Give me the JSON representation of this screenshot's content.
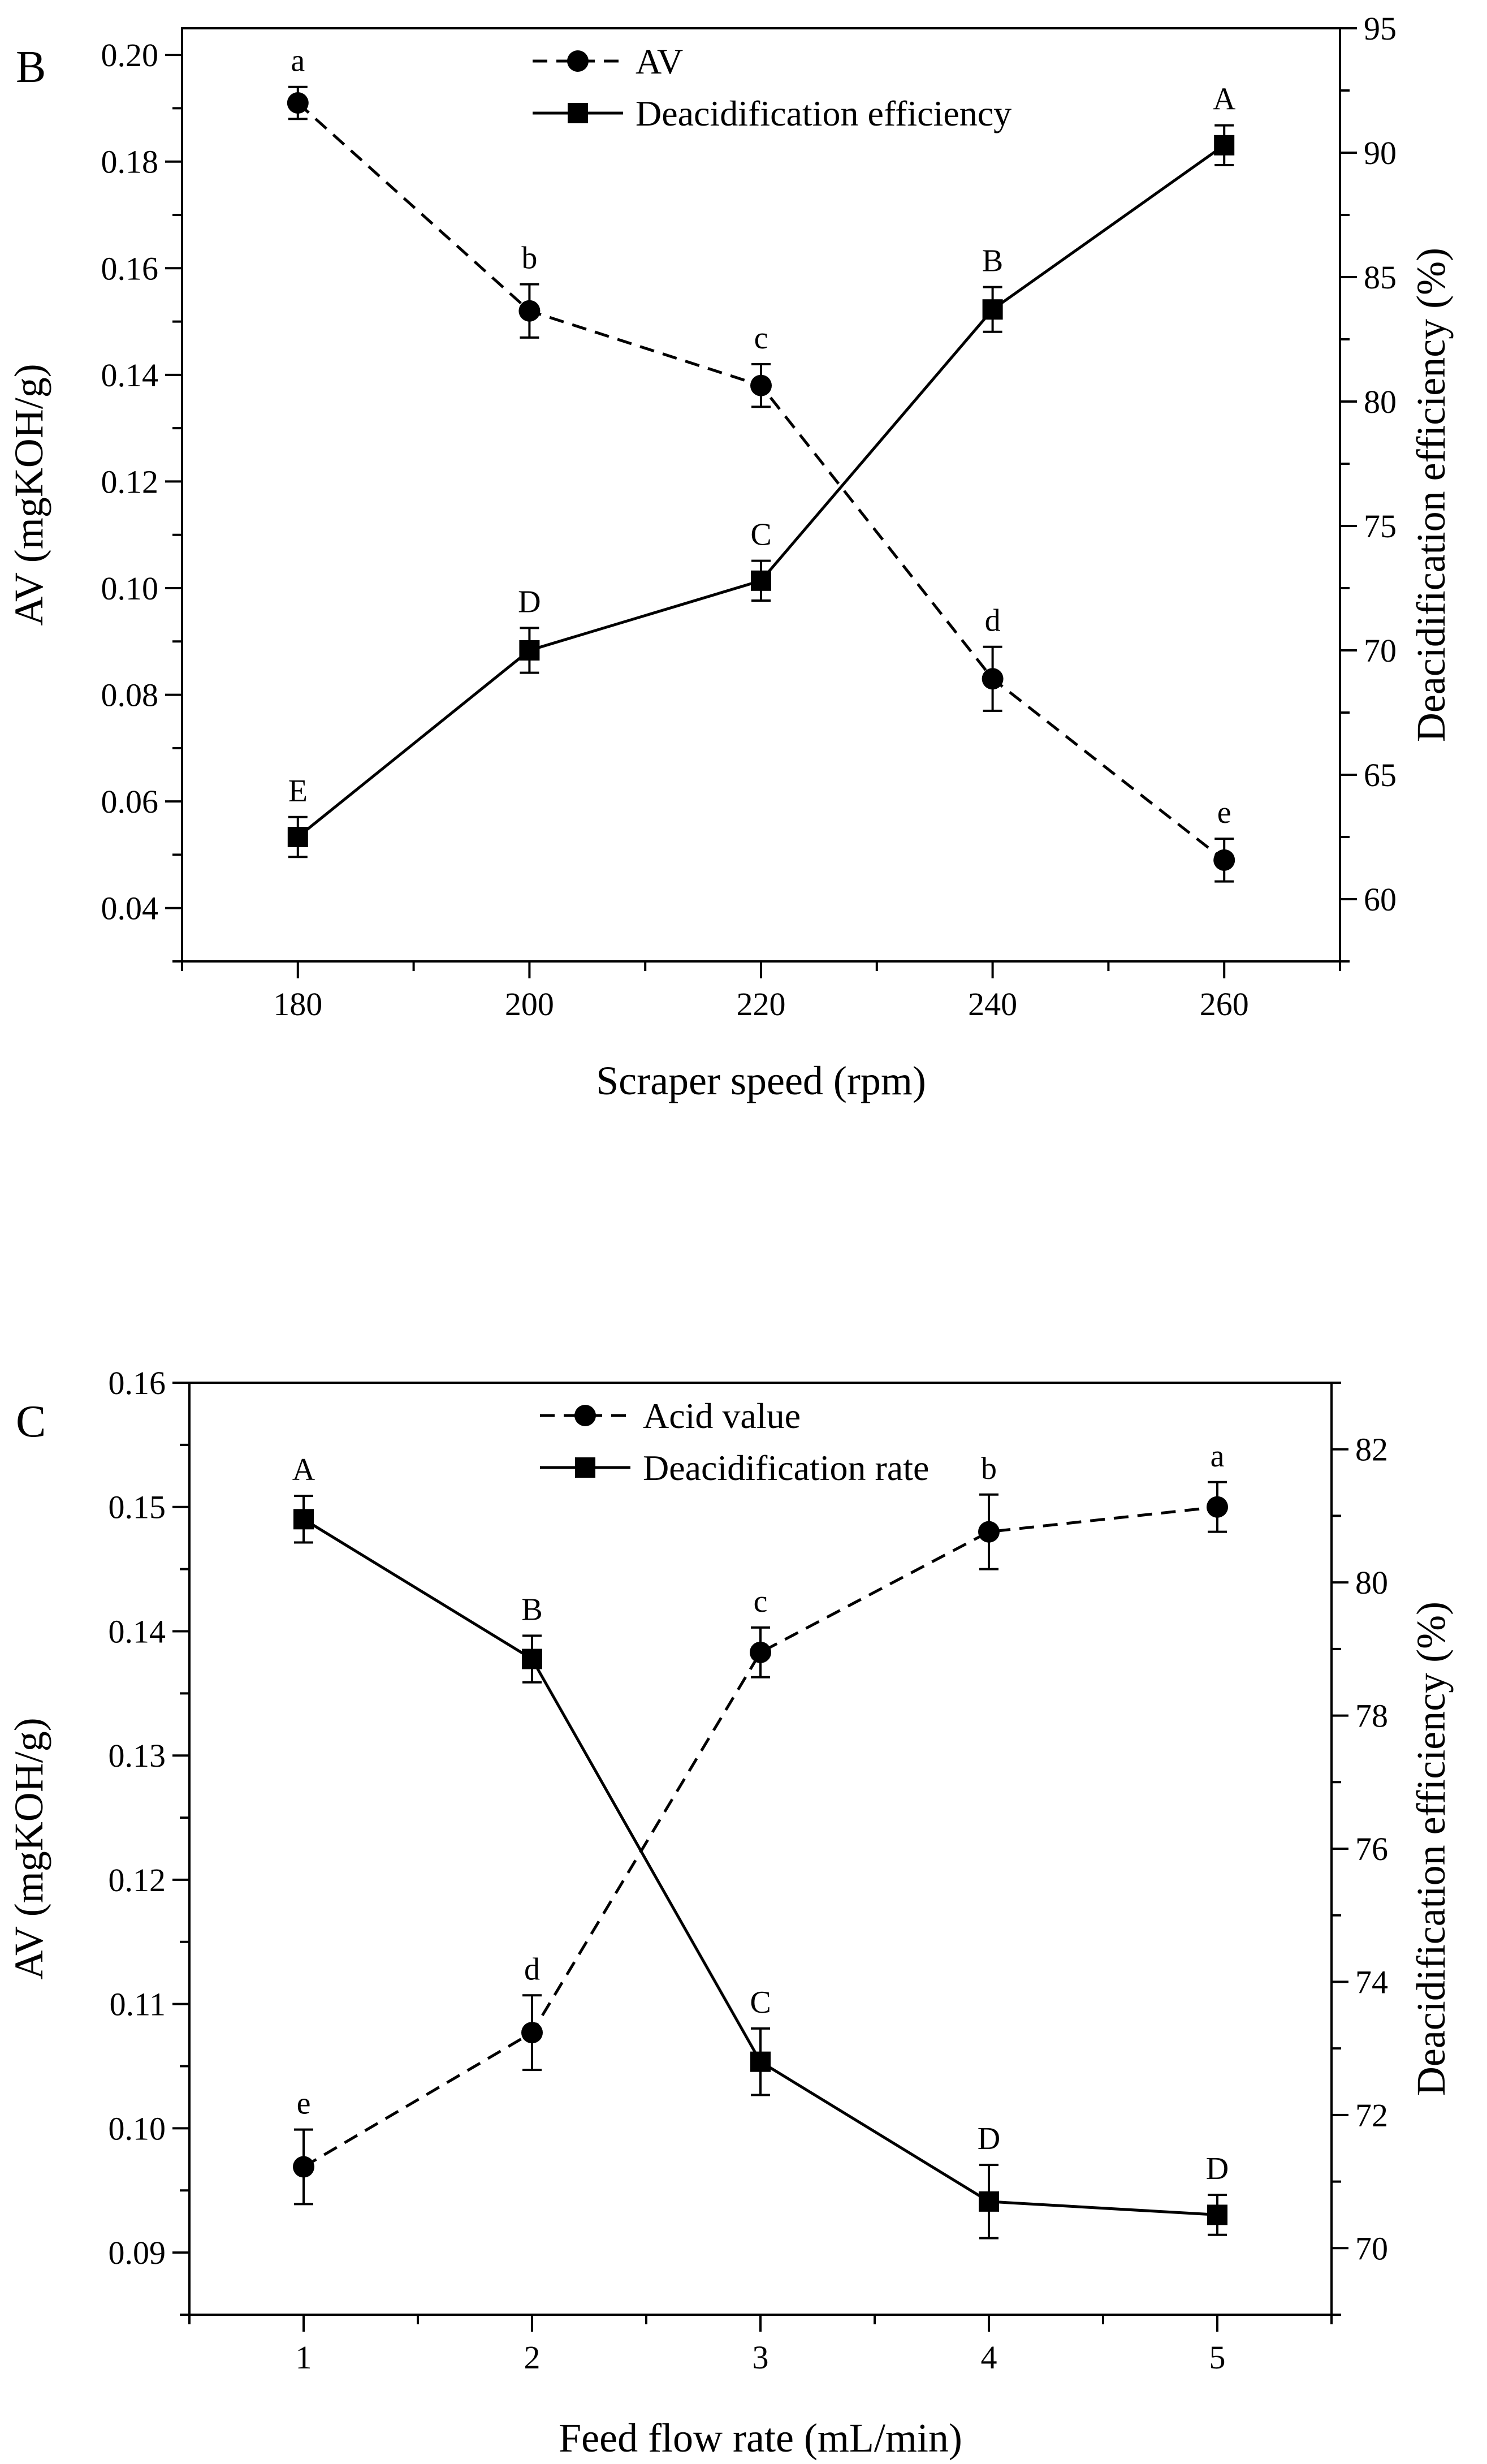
{
  "chart_data": [
    {
      "type": "line",
      "panel_label": "B",
      "xlabel": "Scraper speed (rpm)",
      "ylabel": "AV (mgKOH/g)",
      "y2label": "Deacidification efficiency (%)",
      "x": [
        180,
        200,
        220,
        240,
        260
      ],
      "xlim": [
        170,
        270
      ],
      "xticks": [
        180,
        200,
        220,
        240,
        260
      ],
      "xtick_labels": [
        "180",
        "200",
        "220",
        "240",
        "260"
      ],
      "ylim": [
        0.03,
        0.205
      ],
      "yticks": [
        0.04,
        0.06,
        0.08,
        0.1,
        0.12,
        0.14,
        0.16,
        0.18,
        0.2
      ],
      "ytick_labels": [
        "0.04",
        "0.06",
        "0.08",
        "0.10",
        "0.12",
        "0.14",
        "0.16",
        "0.18",
        "0.20"
      ],
      "y2lim": [
        57.5,
        95
      ],
      "y2ticks": [
        60,
        65,
        70,
        75,
        80,
        85,
        90,
        95
      ],
      "y2tick_labels": [
        "60",
        "65",
        "70",
        "75",
        "80",
        "85",
        "90",
        "95"
      ],
      "legend_position": "top-center",
      "series": [
        {
          "name": "AV",
          "axis": "left",
          "style": "dashed",
          "marker": "circle",
          "values": [
            0.191,
            0.152,
            0.138,
            0.083,
            0.049
          ],
          "errors": [
            0.003,
            0.005,
            0.004,
            0.006,
            0.004
          ],
          "labels": [
            "a",
            "b",
            "c",
            "d",
            "e"
          ]
        },
        {
          "name": "Deacidification efficiency",
          "axis": "right",
          "style": "solid",
          "marker": "square",
          "values": [
            62.5,
            70.0,
            72.8,
            83.7,
            90.3
          ],
          "errors": [
            0.8,
            0.9,
            0.8,
            0.9,
            0.8
          ],
          "labels": [
            "E",
            "D",
            "C",
            "B",
            "A"
          ]
        }
      ]
    },
    {
      "type": "line",
      "panel_label": "C",
      "xlabel": "Feed flow rate (mL/min)",
      "ylabel": "AV (mgKOH/g)",
      "y2label": "Deacidification efficiency (%)",
      "x": [
        1,
        2,
        3,
        4,
        5
      ],
      "xlim": [
        0.5,
        5.5
      ],
      "xticks": [
        1,
        2,
        3,
        4,
        5
      ],
      "xtick_labels": [
        "1",
        "2",
        "3",
        "4",
        "5"
      ],
      "ylim": [
        0.085,
        0.16
      ],
      "yticks": [
        0.09,
        0.1,
        0.11,
        0.12,
        0.13,
        0.14,
        0.15,
        0.16
      ],
      "ytick_labels": [
        "0.09",
        "0.10",
        "0.11",
        "0.12",
        "0.13",
        "0.14",
        "0.15",
        "0.16"
      ],
      "y2lim": [
        69,
        83
      ],
      "y2ticks": [
        70,
        72,
        74,
        76,
        78,
        80,
        82
      ],
      "y2tick_labels": [
        "70",
        "72",
        "74",
        "76",
        "78",
        "80",
        "82"
      ],
      "legend_position": "top-center",
      "series": [
        {
          "name": "Acid value",
          "axis": "left",
          "style": "dashed",
          "marker": "circle",
          "values": [
            0.0969,
            0.1077,
            0.1383,
            0.148,
            0.15
          ],
          "errors": [
            0.003,
            0.003,
            0.002,
            0.003,
            0.002
          ],
          "labels": [
            "e",
            "d",
            "c",
            "b",
            "a"
          ]
        },
        {
          "name": "Deacidification rate",
          "axis": "right",
          "style": "solid",
          "marker": "square",
          "values": [
            80.95,
            78.85,
            72.8,
            70.7,
            70.5
          ],
          "errors": [
            0.35,
            0.35,
            0.5,
            0.55,
            0.3
          ],
          "labels": [
            "A",
            "B",
            "C",
            "D",
            "D"
          ]
        }
      ]
    }
  ]
}
